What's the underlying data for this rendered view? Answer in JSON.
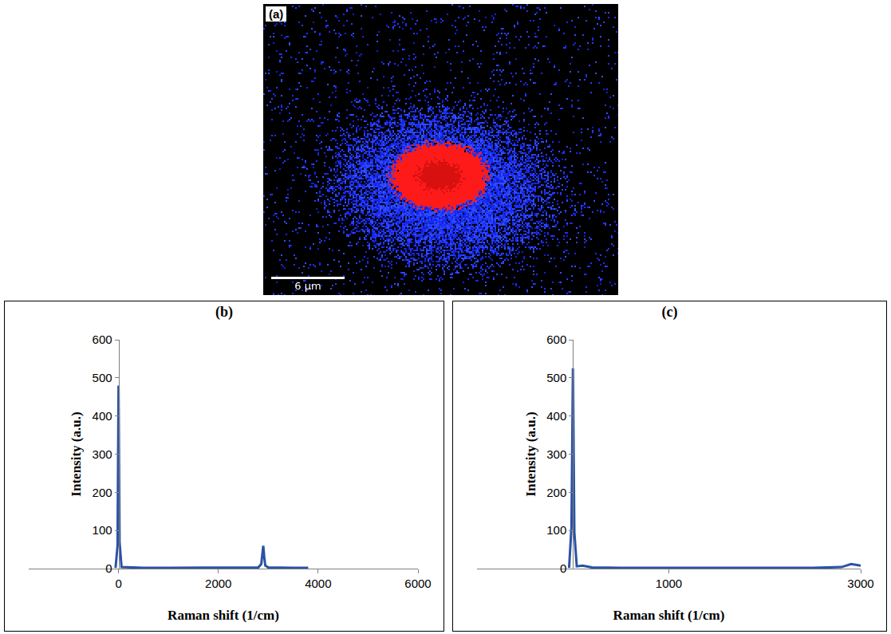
{
  "image": {
    "label": "(a)",
    "scale_bar": "6 µm"
  },
  "chart_data": [
    {
      "type": "line",
      "title": "(b)",
      "x_label": "Raman shift (1/cm)",
      "y_label": "Intensity (a.u.)",
      "color": "#2a52a4",
      "x": [
        -60,
        -20,
        0,
        20,
        60,
        200,
        500,
        1000,
        1500,
        2000,
        2500,
        2800,
        2860,
        2880,
        2900,
        2920,
        2940,
        3000,
        3200,
        3500,
        3800
      ],
      "values": [
        2,
        60,
        480,
        70,
        4,
        3,
        2,
        2,
        2,
        2,
        2,
        3,
        12,
        45,
        60,
        30,
        8,
        3,
        2,
        2,
        2
      ],
      "xlim": [
        -1800,
        6000
      ],
      "xticks": [
        0,
        2000,
        4000,
        6000
      ],
      "ylim": [
        0,
        600
      ],
      "yticks": [
        0,
        100,
        200,
        300,
        400,
        500,
        600
      ],
      "grid": false
    },
    {
      "type": "line",
      "title": "(c)",
      "x_label": "Raman shift (1/cm)",
      "y_label": "Intensity (a.u.)",
      "color": "#2a52a4",
      "x": [
        -40,
        -15,
        0,
        15,
        40,
        100,
        200,
        500,
        1000,
        1500,
        2000,
        2500,
        2800,
        2850,
        2900,
        2950,
        3000
      ],
      "values": [
        2,
        110,
        525,
        95,
        6,
        8,
        3,
        2,
        2,
        2,
        2,
        2,
        4,
        8,
        12,
        10,
        8
      ],
      "xlim": [
        -1000,
        3000
      ],
      "xticks": [
        1000,
        3000
      ],
      "ylim": [
        0,
        600
      ],
      "yticks": [
        0,
        100,
        200,
        300,
        400,
        500,
        600
      ],
      "grid": false
    }
  ]
}
